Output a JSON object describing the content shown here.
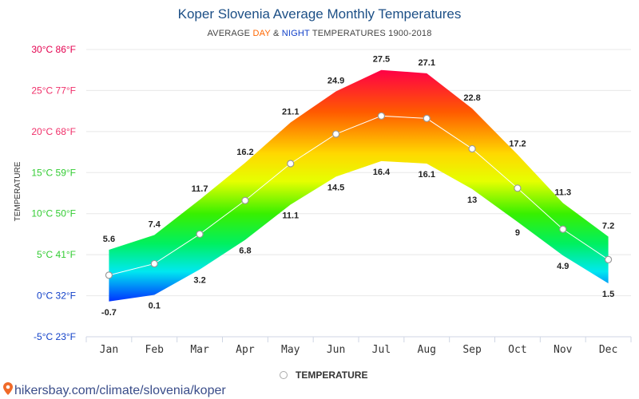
{
  "title": "Koper Slovenia Average Monthly Temperatures",
  "subtitle": {
    "prefix": "AVERAGE ",
    "day": "DAY",
    "amp": " & ",
    "night": "NIGHT",
    "suffix": " TEMPERATURES 1900-2018"
  },
  "legend": {
    "label": "TEMPERATURE"
  },
  "footer": {
    "link": "hikersbay.com/climate/slovenia/koper"
  },
  "chart_data": {
    "type": "area",
    "xlabel": "",
    "ylabel": "TEMPERATURE",
    "categories": [
      "Jan",
      "Feb",
      "Mar",
      "Apr",
      "May",
      "Jun",
      "Jul",
      "Aug",
      "Sep",
      "Oct",
      "Nov",
      "Dec"
    ],
    "ylim": [
      -5,
      30
    ],
    "yticks": [
      {
        "value": 30,
        "label": "30°C 86°F",
        "color": "#e4004f"
      },
      {
        "value": 25,
        "label": "25°C 77°F",
        "color": "#f0306a"
      },
      {
        "value": 20,
        "label": "20°C 68°F",
        "color": "#f0306a"
      },
      {
        "value": 15,
        "label": "15°C 59°F",
        "color": "#33cc33"
      },
      {
        "value": 10,
        "label": "10°C 50°F",
        "color": "#33cc33"
      },
      {
        "value": 5,
        "label": "5°C 41°F",
        "color": "#33cc33"
      },
      {
        "value": 0,
        "label": "0°C 32°F",
        "color": "#1140c8"
      },
      {
        "value": -5,
        "label": "-5°C 23°F",
        "color": "#1140c8"
      }
    ],
    "series": [
      {
        "name": "",
        "values": [
          5.6,
          7.4,
          11.7,
          16.2,
          21.1,
          24.9,
          27.5,
          27.1,
          22.8,
          17.2,
          11.3,
          7.2
        ]
      },
      {
        "name": "",
        "values": [
          -0.7,
          0.1,
          3.2,
          6.8,
          11.1,
          14.5,
          16.4,
          16.1,
          13,
          9,
          4.9,
          1.5
        ]
      },
      {
        "name": "TEMPERATURE",
        "values": [
          2.5,
          3.9,
          7.5,
          11.6,
          16.1,
          19.7,
          21.9,
          21.6,
          17.9,
          13.1,
          8.1,
          4.4
        ]
      }
    ],
    "grid": true,
    "legend_position": "bottom-center"
  }
}
